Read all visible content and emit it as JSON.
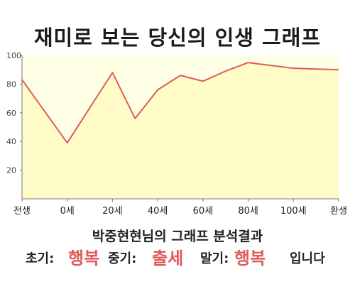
{
  "header": {
    "title": "재미로 보는 당신의 인생 그래프"
  },
  "chart_data": {
    "type": "area",
    "title": "재미로 보는 당신의 인생 그래프",
    "xlabel": "",
    "ylabel": "",
    "x_ticks": [
      "전생",
      "0세",
      "20세",
      "40세",
      "60세",
      "80세",
      "100세",
      "환생"
    ],
    "y_ticks": [
      20,
      40,
      60,
      80,
      100
    ],
    "ylim": [
      0,
      100
    ],
    "grid": false,
    "series": [
      {
        "points": [
          {
            "x": "전생",
            "y": 83
          },
          {
            "x": "0세",
            "y": 39
          },
          {
            "x": "20세",
            "y": 88
          },
          {
            "x": "30세",
            "y": 56
          },
          {
            "x": "40세",
            "y": 76
          },
          {
            "x": "50세",
            "y": 86
          },
          {
            "x": "60세",
            "y": 82
          },
          {
            "x": "70세",
            "y": 89
          },
          {
            "x": "80세",
            "y": 95
          },
          {
            "x": "100세",
            "y": 91
          },
          {
            "x": "환생",
            "y": 90
          }
        ]
      }
    ],
    "colors": {
      "line": "#e05a5a",
      "fill": "#fffcc8",
      "plot_bg": "#ffffe6"
    }
  },
  "summary": {
    "text": "박중현현님의 그래프 분석결과"
  },
  "result": {
    "early_label": "초기:",
    "early_value": "행복",
    "middle_label": "중기:",
    "middle_value": "출세",
    "late_label": "말기:",
    "late_value": "행복",
    "suffix": "입니다"
  }
}
